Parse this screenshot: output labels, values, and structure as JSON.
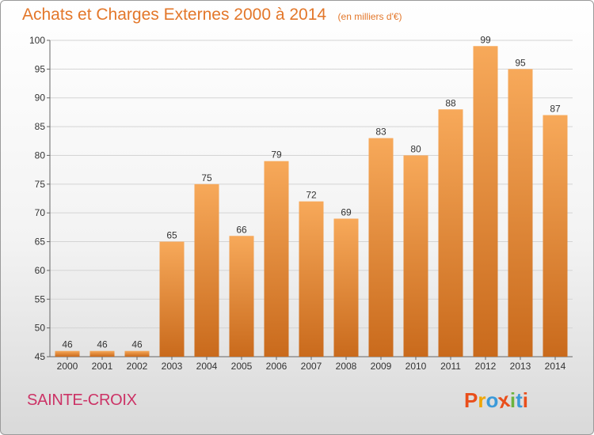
{
  "header": {
    "title": "Achats et Charges Externes 2000 à 2014",
    "subtitle": "(en milliers d'€)"
  },
  "footer": {
    "location": "SAINTE-CROIX",
    "logo": [
      "P",
      "r",
      "o",
      "x",
      "i",
      "t",
      "i"
    ]
  },
  "colors": {
    "accent": "#e3772a",
    "bar_light": "#f7a95a",
    "bar_dark": "#c96a1c",
    "location": "#cc3366",
    "logo": [
      "#e94e1b",
      "#f0a500",
      "#3b9ad9",
      "#e94e1b",
      "#6cb33e",
      "#3b9ad9",
      "#e94e1b"
    ]
  },
  "chart_data": {
    "type": "bar",
    "categories": [
      "2000",
      "2001",
      "2002",
      "2003",
      "2004",
      "2005",
      "2006",
      "2007",
      "2008",
      "2009",
      "2010",
      "2011",
      "2012",
      "2013",
      "2014"
    ],
    "values": [
      46,
      46,
      46,
      65,
      75,
      66,
      79,
      72,
      69,
      83,
      80,
      88,
      99,
      95,
      87
    ],
    "title": "Achats et Charges Externes 2000 à 2014",
    "subtitle": "(en milliers d'€)",
    "xlabel": "",
    "ylabel": "",
    "ylim": [
      45,
      100
    ],
    "yticks": [
      45,
      50,
      55,
      60,
      65,
      70,
      75,
      80,
      85,
      90,
      95,
      100
    ],
    "grid": true
  }
}
